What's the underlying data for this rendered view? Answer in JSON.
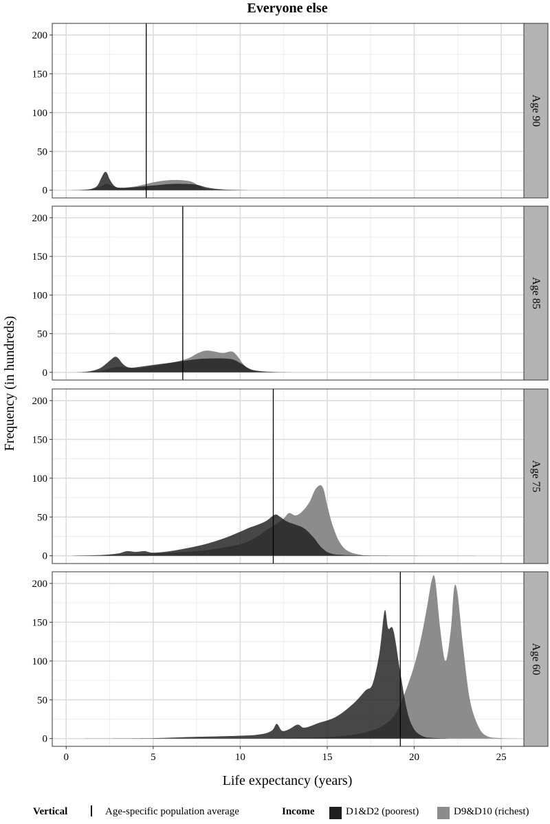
{
  "chart_data": {
    "type": "area",
    "title": "Everyone else",
    "xlabel": "Life expectancy (years)",
    "ylabel": "Frequency (in hundreds)",
    "xlim": [
      -0.8,
      26.3
    ],
    "ylim": [
      -10,
      215
    ],
    "x_ticks": [
      0,
      5,
      10,
      15,
      20,
      25
    ],
    "y_ticks": [
      0,
      50,
      100,
      150,
      200
    ],
    "grid": true,
    "legend_position": "bottom",
    "legend": {
      "vertical_title": "Vertical",
      "vertical_label": "Age-specific population average",
      "income_title": "Income",
      "series_names": [
        "D1&D2 (poorest)",
        "D9&D10 (richest)"
      ]
    },
    "colors": {
      "poorest": "#1e1e1e",
      "richest": "#8c8c8c",
      "overlap": "#4a4a4a",
      "strip": "#b3b3b3",
      "grid": "#dcdcdc"
    },
    "panels": [
      {
        "label": "Age 90",
        "average": 4.6,
        "series": [
          {
            "name": "D1&D2 (poorest)",
            "x": [
              0.3,
              1.0,
              1.5,
              1.8,
              2.0,
              2.2,
              2.35,
              2.5,
              2.8,
              3.2,
              4.0,
              5.0,
              6.0,
              7.0,
              7.5,
              8.0,
              8.5,
              9.0,
              9.5,
              10.5
            ],
            "y": [
              0,
              0.5,
              2,
              6,
              15,
              23,
              22,
              14,
              5,
              3,
              4,
              6,
              8,
              8,
              7,
              4,
              2,
              1,
              0.5,
              0
            ]
          },
          {
            "name": "D9&D10 (richest)",
            "x": [
              0.3,
              1.0,
              1.5,
              2.0,
              2.3,
              2.6,
              3.0,
              4.0,
              5.0,
              5.5,
              6.0,
              6.5,
              7.0,
              7.3,
              7.6,
              8.0,
              8.5,
              9.0,
              9.5
            ],
            "y": [
              0,
              0.3,
              1.5,
              5,
              8,
              6,
              3,
              5,
              10,
              12,
              13,
              13,
              12,
              10,
              6,
              2,
              0.5,
              0.2,
              0
            ]
          }
        ]
      },
      {
        "label": "Age 85",
        "average": 6.7,
        "series": [
          {
            "name": "D1&D2 (poorest)",
            "x": [
              0.3,
              1.0,
              1.5,
              2.0,
              2.5,
              2.8,
              3.0,
              3.3,
              3.7,
              4.5,
              5.5,
              6.5,
              7.5,
              8.5,
              9.5,
              10.0,
              10.5,
              11.0,
              12.0,
              13.6
            ],
            "y": [
              0,
              0.5,
              2,
              6,
              15,
              20,
              18,
              10,
              6,
              8,
              11,
              14,
              17,
              18,
              17,
              12,
              5,
              2,
              0.5,
              0
            ]
          },
          {
            "name": "D9&D10 (richest)",
            "x": [
              0.3,
              1.0,
              2.0,
              2.5,
              3.0,
              3.5,
              4.0,
              5.0,
              6.0,
              7.0,
              7.5,
              8.0,
              8.5,
              9.0,
              9.5,
              9.8,
              10.2,
              10.6,
              11.2,
              12.0
            ],
            "y": [
              0,
              0.3,
              2,
              5,
              7,
              6,
              5,
              8,
              12,
              18,
              24,
              28,
              27,
              25,
              27,
              22,
              10,
              3,
              0.5,
              0
            ]
          }
        ]
      },
      {
        "label": "Age 75",
        "average": 11.9,
        "series": [
          {
            "name": "D1&D2 (poorest)",
            "x": [
              0.3,
              2.0,
              3.0,
              3.5,
              4.0,
              4.5,
              5.0,
              6.0,
              7.0,
              8.0,
              9.0,
              10.0,
              10.5,
              11.0,
              11.5,
              12.0,
              12.3,
              12.7,
              13.2,
              13.7,
              14.2,
              14.7,
              15.2,
              16.0,
              18.0,
              24.0
            ],
            "y": [
              0,
              1,
              3,
              6,
              5,
              6,
              4,
              6,
              10,
              15,
              22,
              31,
              36,
              40,
              45,
              53,
              50,
              44,
              40,
              35,
              24,
              10,
              3,
              1,
              0.3,
              0
            ]
          },
          {
            "name": "D9&D10 (richest)",
            "x": [
              0.3,
              2.0,
              4.0,
              6.0,
              8.0,
              10.0,
              11.0,
              11.5,
              12.0,
              12.5,
              12.8,
              13.2,
              13.6,
              14.0,
              14.3,
              14.6,
              14.8,
              15.0,
              15.3,
              15.7,
              16.2,
              17.0,
              18.0
            ],
            "y": [
              0,
              0.5,
              2,
              4,
              7,
              15,
              25,
              33,
              40,
              48,
              55,
              52,
              58,
              70,
              85,
              91,
              85,
              65,
              40,
              18,
              6,
              1,
              0
            ]
          }
        ]
      },
      {
        "label": "Age 60",
        "average": 19.2,
        "series": [
          {
            "name": "D1&D2 (poorest)",
            "x": [
              1.0,
              5.0,
              7.0,
              9.0,
              11.0,
              11.8,
              12.1,
              12.4,
              12.8,
              13.3,
              13.7,
              14.5,
              15.5,
              16.5,
              17.2,
              17.6,
              18.0,
              18.3,
              18.5,
              18.8,
              19.2,
              19.6,
              20.0,
              20.5,
              21.0,
              22.0
            ],
            "y": [
              0,
              0.5,
              2,
              3,
              5,
              10,
              19,
              10,
              12,
              18,
              14,
              20,
              28,
              45,
              62,
              70,
              110,
              165,
              142,
              140,
              85,
              35,
              12,
              3,
              1,
              0
            ]
          },
          {
            "name": "D9&D10 (richest)",
            "x": [
              5.0,
              10.0,
              13.0,
              15.0,
              16.5,
              17.5,
              18.3,
              19.0,
              19.8,
              20.3,
              20.7,
              21.0,
              21.2,
              21.5,
              21.8,
              22.1,
              22.3,
              22.5,
              22.8,
              23.2,
              23.7,
              24.2,
              25.0,
              26.0
            ],
            "y": [
              0,
              0.5,
              1,
              2,
              5,
              10,
              18,
              35,
              80,
              120,
              165,
              203,
              205,
              140,
              100,
              140,
              195,
              185,
              120,
              50,
              15,
              3,
              0.5,
              0
            ]
          }
        ]
      }
    ]
  }
}
